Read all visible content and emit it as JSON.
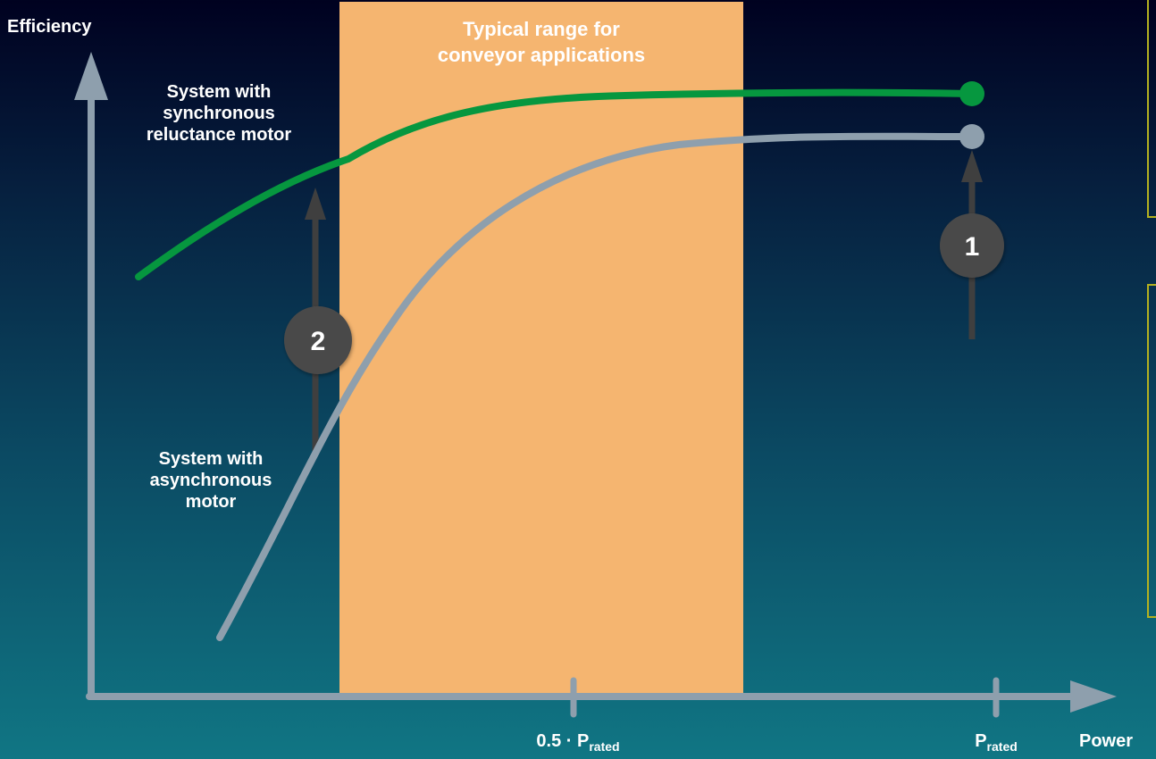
{
  "axes": {
    "y_label": "Efficiency",
    "x_label": "Power"
  },
  "ticks": [
    {
      "main": "0.5 · P",
      "sub": "rated"
    },
    {
      "main": "P",
      "sub": "rated"
    }
  ],
  "band": {
    "line1": "Typical range for",
    "line2": "conveyor applications",
    "color": "#f5b570"
  },
  "curves": {
    "synchronous": {
      "line1": "System with",
      "line2": "synchronous",
      "line3": "reluctance motor",
      "color": "#06973f"
    },
    "asynchronous": {
      "line1": "System with",
      "line2": "asynchronous",
      "line3": "motor",
      "color": "#8e9fad"
    }
  },
  "markers": [
    {
      "number": "1"
    },
    {
      "number": "2"
    }
  ],
  "colors": {
    "axis": "#8e9fad",
    "arrow": "#3f3f3f",
    "marker_fill": "#4a4a4a",
    "side_box_border": "#b3b020"
  }
}
